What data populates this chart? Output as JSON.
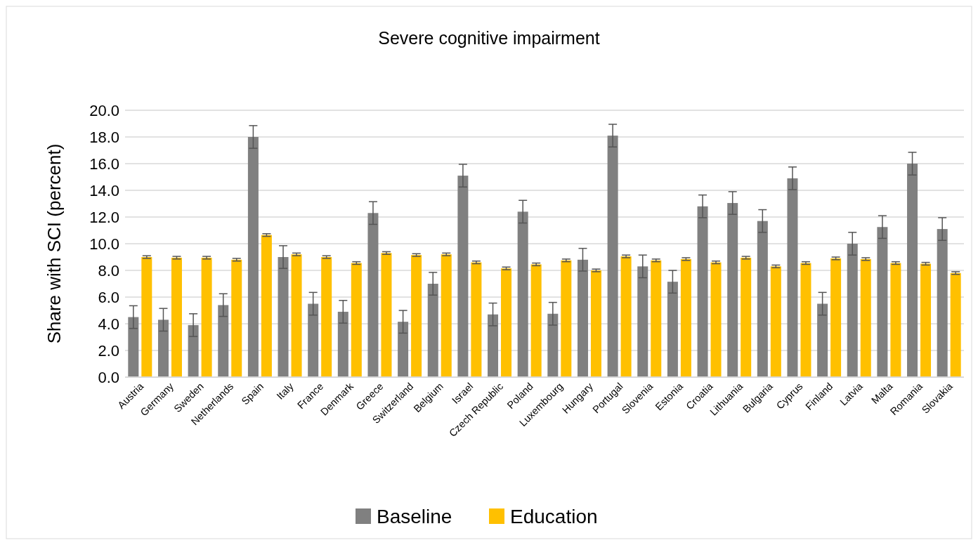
{
  "chart_data": {
    "type": "bar",
    "title": "Severe cognitive impairment",
    "ylabel": "Share with SCI (percent)",
    "categories": [
      "Austria",
      "Germany",
      "Sweden",
      "Netherlands",
      "Spain",
      "Italy",
      "France",
      "Denmark",
      "Greece",
      "Switzerland",
      "Belgium",
      "Israel",
      "Czech Republic",
      "Poland",
      "Luxembourg",
      "Hungary",
      "Portugal",
      "Slovenia",
      "Estonia",
      "Croatia",
      "Lithuania",
      "Bulgaria",
      "Cyprus",
      "Finland",
      "Latvia",
      "Malta",
      "Romania",
      "Slovakia"
    ],
    "series": [
      {
        "name": "Baseline",
        "color": "#808080",
        "values": [
          4.5,
          4.3,
          3.9,
          5.4,
          18.0,
          9.0,
          5.5,
          4.9,
          12.3,
          4.15,
          7.0,
          15.1,
          4.7,
          12.4,
          4.75,
          8.8,
          18.1,
          8.3,
          7.15,
          12.8,
          13.05,
          11.7,
          14.9,
          5.5,
          10.0,
          11.25,
          16.0,
          11.1
        ],
        "errors": [
          0.85,
          0.85,
          0.85,
          0.85,
          0.85,
          0.85,
          0.85,
          0.85,
          0.85,
          0.85,
          0.85,
          0.85,
          0.85,
          0.85,
          0.85,
          0.85,
          0.85,
          0.85,
          0.85,
          0.85,
          0.85,
          0.85,
          0.85,
          0.85,
          0.85,
          0.85,
          0.85,
          0.85
        ]
      },
      {
        "name": "Education",
        "color": "#ffc000",
        "values": [
          9.0,
          8.95,
          8.95,
          8.8,
          10.65,
          9.2,
          9.0,
          8.55,
          9.3,
          9.15,
          9.2,
          8.6,
          8.15,
          8.45,
          8.75,
          8.0,
          9.05,
          8.75,
          8.85,
          8.6,
          8.95,
          8.3,
          8.55,
          8.9,
          8.85,
          8.55,
          8.5,
          7.8
        ],
        "errors": [
          0.1,
          0.1,
          0.1,
          0.1,
          0.1,
          0.1,
          0.1,
          0.1,
          0.1,
          0.1,
          0.1,
          0.1,
          0.1,
          0.1,
          0.1,
          0.1,
          0.1,
          0.1,
          0.1,
          0.1,
          0.1,
          0.1,
          0.1,
          0.1,
          0.1,
          0.1,
          0.1,
          0.1
        ]
      }
    ],
    "ylim": [
      0,
      20
    ],
    "yticks": [
      {
        "value": 0,
        "label": "0.0"
      },
      {
        "value": 2,
        "label": "2.0"
      },
      {
        "value": 4,
        "label": "4.0"
      },
      {
        "value": 6,
        "label": "6.0"
      },
      {
        "value": 8,
        "label": "8.0"
      },
      {
        "value": 10,
        "label": "10.0"
      },
      {
        "value": 12,
        "label": "12.0"
      },
      {
        "value": 14,
        "label": "14.0"
      },
      {
        "value": 16,
        "label": "16.0"
      },
      {
        "value": 18,
        "label": "18.0"
      },
      {
        "value": 20,
        "label": "20.0"
      }
    ],
    "grid": "y",
    "legend": "bottom"
  }
}
